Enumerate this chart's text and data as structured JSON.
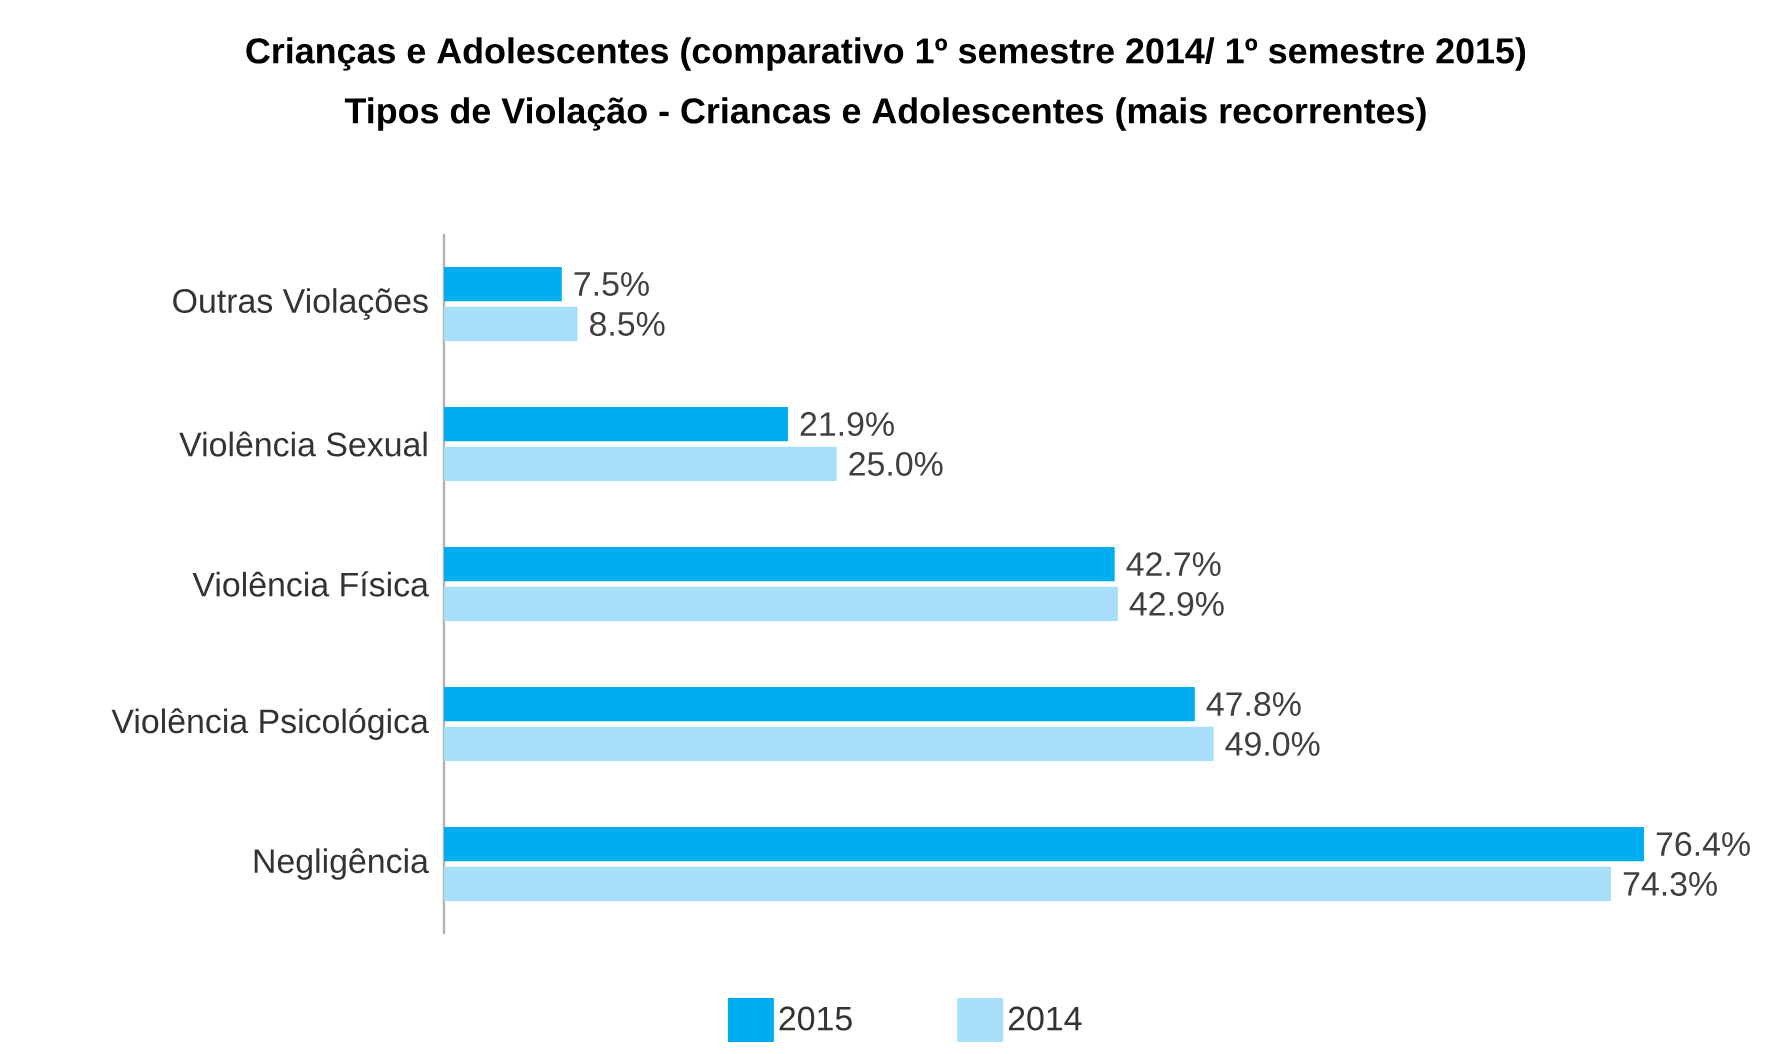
{
  "chart_data": {
    "type": "bar",
    "orientation": "horizontal",
    "title": "Crianças e Adolescentes (comparativo 1º semestre 2014/ 1º semestre 2015)",
    "subtitle": "Tipos de Violação - Criancas e Adolescentes (mais recorrentes)",
    "categories": [
      "Outras Violações",
      "Violência  Sexual",
      "Violência Física",
      "Violência  Psicológica",
      "Negligência"
    ],
    "series": [
      {
        "name": "2015",
        "color": "#00aeef",
        "values": [
          7.5,
          21.9,
          42.7,
          47.8,
          76.4
        ],
        "value_labels": [
          "7.5%",
          "21.9%",
          "42.7%",
          "47.8%",
          "76.4%"
        ]
      },
      {
        "name": "2014",
        "color": "#a6dff7",
        "values": [
          8.5,
          25.0,
          42.9,
          49.0,
          74.3
        ],
        "value_labels": [
          "8.5%",
          "25.0%",
          "42.9%",
          "49.0%",
          "74.3%"
        ]
      }
    ],
    "tick_labels": "y",
    "legend": "bottom"
  }
}
